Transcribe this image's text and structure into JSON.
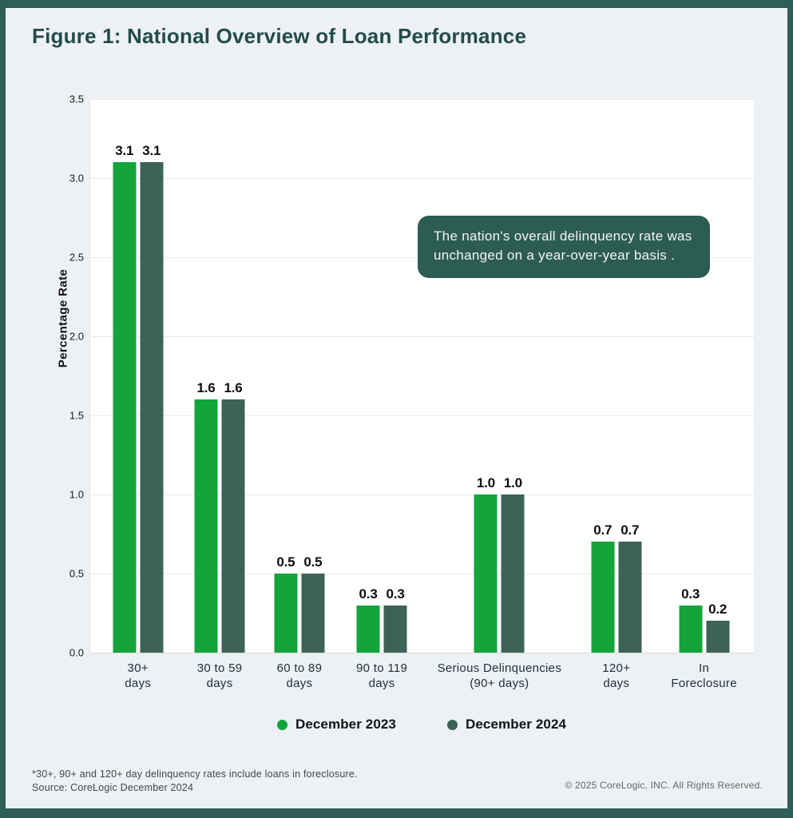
{
  "page": {
    "title": "Figure 1: National Overview of Loan Performance",
    "footnote_line1": "*30+, 90+ and 120+ day delinquency rates include loans in foreclosure.",
    "footnote_line2": "Source: CoreLogic December 2024",
    "copyright": "© 2025 CoreLogic, INC. All Rights Reserved."
  },
  "annotation": {
    "text": "The nation's overall delinquency rate was unchanged on a year-over-year basis ."
  },
  "chart_data": {
    "type": "bar",
    "title": "Figure 1: National Overview of Loan Performance",
    "xlabel": "",
    "ylabel": "Percentage Rate",
    "ylim": [
      0,
      3.5
    ],
    "ytick_step": 0.5,
    "ytick_labels": [
      "3.5",
      "3.0",
      "2.5",
      "2.0",
      "1.5",
      "1.0",
      "0.5",
      "0.0"
    ],
    "grid": true,
    "legend_position": "bottom",
    "plot_background": "#ffffff",
    "categories": [
      "30+\ndays",
      "30 to 59\ndays",
      "60 to 89\ndays",
      "90 to 119\ndays",
      "Serious Delinquencies\n(90+ days)",
      "120+\ndays",
      "In\nForeclosure"
    ],
    "series": [
      {
        "name": "December 2023",
        "color": "#13a43b",
        "values": [
          3.1,
          1.6,
          0.5,
          0.3,
          1.0,
          0.7,
          0.3
        ]
      },
      {
        "name": "December 2024",
        "color": "#3d6357",
        "values": [
          3.1,
          1.6,
          0.5,
          0.3,
          1.0,
          0.7,
          0.2
        ]
      }
    ],
    "value_label_decimals": 1
  },
  "colors": {
    "frame": "#2e5e55",
    "page_background": "#edf1f5",
    "title_text": "#234c4a",
    "callout_background": "#2d5c52",
    "callout_text": "#f3f6f5",
    "series_2023": "#13a43b",
    "series_2024": "#3d6357"
  }
}
